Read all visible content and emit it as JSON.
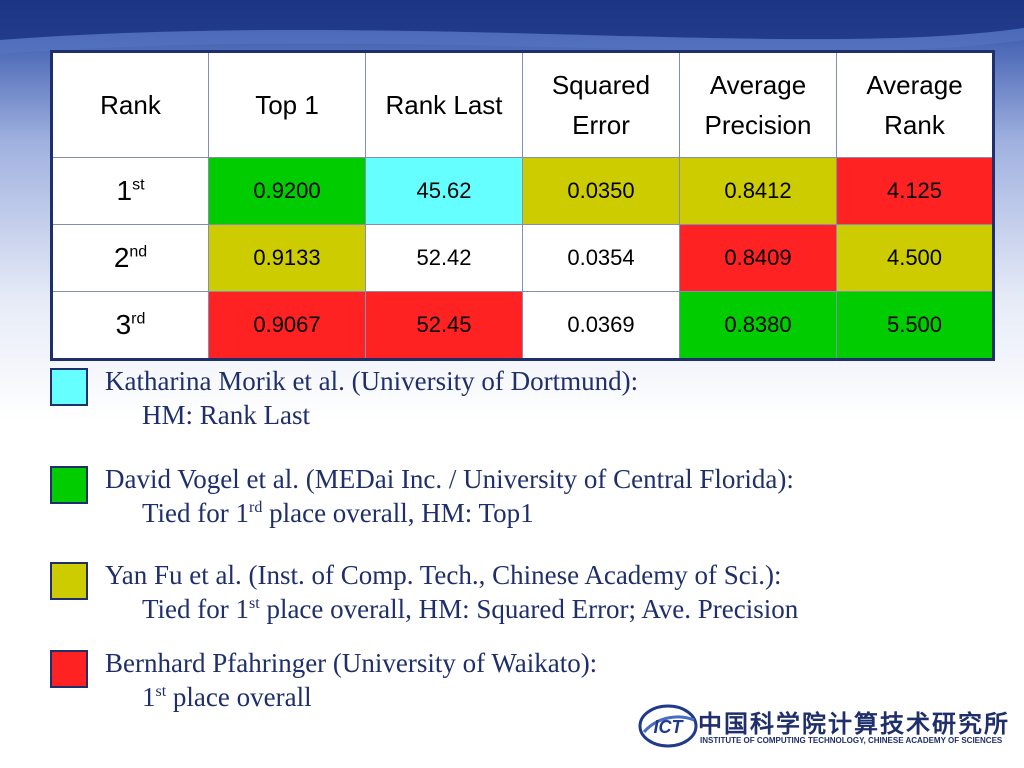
{
  "table": {
    "headers": [
      "Rank",
      "Top 1",
      "Rank Last",
      "Squared Error",
      "Average Precision",
      "Average Rank"
    ],
    "header_lines": [
      [
        "Rank"
      ],
      [
        "Top 1"
      ],
      [
        "Rank Last"
      ],
      [
        "Squared",
        "Error"
      ],
      [
        "Average",
        "Precision"
      ],
      [
        "Average",
        "Rank"
      ]
    ],
    "rows": [
      {
        "rank": "1",
        "suffix": "st",
        "cells": [
          {
            "value": "0.9200",
            "color": "green"
          },
          {
            "value": "45.62",
            "color": "cyan"
          },
          {
            "value": "0.0350",
            "color": "olive"
          },
          {
            "value": "0.8412",
            "color": "olive"
          },
          {
            "value": "4.125",
            "color": "red"
          }
        ]
      },
      {
        "rank": "2",
        "suffix": "nd",
        "cells": [
          {
            "value": "0.9133",
            "color": "olive"
          },
          {
            "value": "52.42",
            "color": "white"
          },
          {
            "value": "0.0354",
            "color": "white"
          },
          {
            "value": "0.8409",
            "color": "red"
          },
          {
            "value": "4.500",
            "color": "olive"
          }
        ]
      },
      {
        "rank": "3",
        "suffix": "rd",
        "cells": [
          {
            "value": "0.9067",
            "color": "red"
          },
          {
            "value": "52.45",
            "color": "red"
          },
          {
            "value": "0.0369",
            "color": "white"
          },
          {
            "value": "0.8380",
            "color": "green"
          },
          {
            "value": "5.500",
            "color": "green"
          }
        ]
      }
    ]
  },
  "colors": {
    "cyan": "#66ffff",
    "green": "#00cc00",
    "olive": "#cccc00",
    "red": "#ff2222",
    "white": "#ffffff",
    "text_navy": "#1f2f6b"
  },
  "legend": [
    {
      "color": "cyan",
      "team": "Katharina Morik et al. (University of Dortmund):",
      "note_pre": "HM: Rank Last",
      "note_sup": "",
      "note_post": ""
    },
    {
      "color": "green",
      "team": "David Vogel et al. (MEDai Inc. / University of Central Florida):",
      "note_pre": "Tied for 1",
      "note_sup": "rd",
      "note_post": " place overall, HM: Top1"
    },
    {
      "color": "olive",
      "team": "Yan Fu et al. (Inst. of Comp. Tech., Chinese Academy of Sci.):",
      "note_pre": "Tied for 1",
      "note_sup": "st",
      "note_post": " place overall, HM: Squared Error; Ave. Precision"
    },
    {
      "color": "red",
      "team": "Bernhard Pfahringer (University of Waikato):",
      "note_pre": "1",
      "note_sup": "st",
      "note_post": " place overall"
    }
  ],
  "logo": {
    "mark_text": "ICT",
    "chinese_name": "中国科学院计算技术研究所",
    "english_name": "INSTITUTE OF COMPUTING TECHNOLOGY, CHINESE ACADEMY OF SCIENCES"
  }
}
